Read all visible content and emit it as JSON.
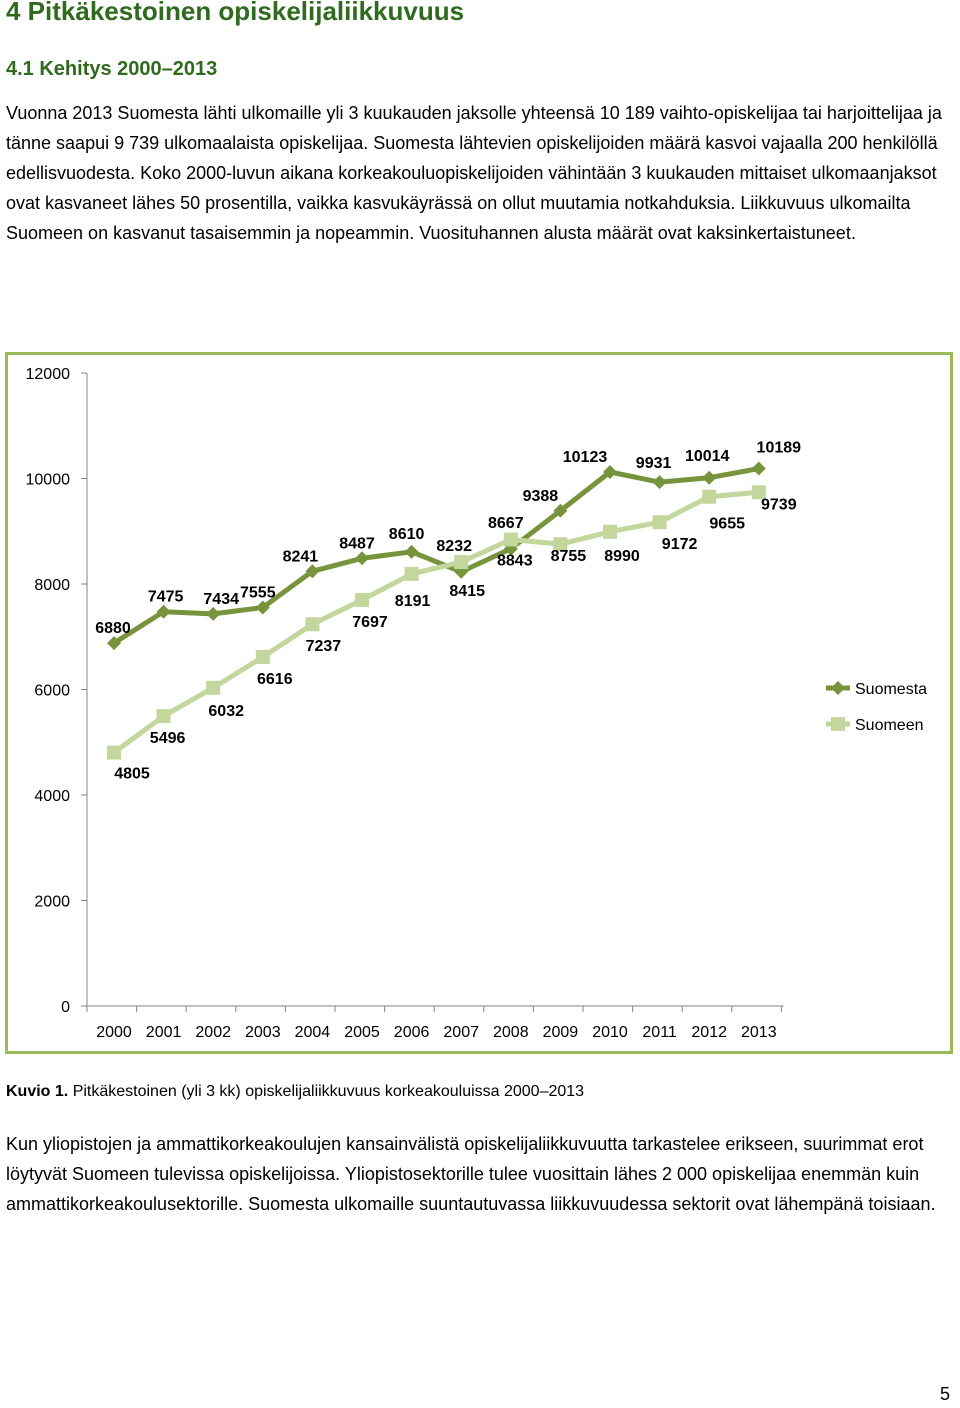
{
  "heading": "4 Pitkäkestoinen opiskelijaliikkuvuus",
  "subheading": "4.1 Kehitys 2000–2013",
  "paragraph1": "Vuonna 2013 Suomesta lähti ulkomaille yli 3 kuukauden jaksolle yhteensä 10 189 vaihto-opiskelijaa tai harjoittelijaa ja tänne saapui 9 739 ulkomaalaista opiskelijaa. Suomesta lähtevien opiskelijoiden määrä kasvoi vajaalla 200 henkilöllä edellisvuodesta. Koko 2000-luvun aikana korkeakouluopiskelijoiden vähintään 3 kuukauden mittaiset ulkomaanjaksot ovat kasvaneet lähes 50 prosentilla, vaikka kasvukäyrässä on ollut muutamia notkahduksia. Liikkuvuus ulkomailta Suomeen on kasvanut tasaisemmin ja nopeammin. Vuosituhannen alusta määrät ovat kaksinkertaistuneet.",
  "caption_label": "Kuvio 1.",
  "caption_text": "Pitkäkestoinen (yli 3 kk) opiskelijaliikkuvuus korkeakouluissa 2000–2013",
  "paragraph2": "Kun yliopistojen ja ammattikorkeakoulujen kansainvälistä opiskelijaliikkuvuutta tarkastelee erikseen, suurimmat erot löytyvät Suomeen tulevissa opiskelijoissa. Yliopistosektorille tulee vuosittain lähes 2 000 opiskelijaa enemmän kuin ammattikorkeakoulusektorille. Suomesta ulkomaille suuntautuvassa liikkuvuudessa sektorit ovat lähempänä toisiaan.",
  "page_number": "5",
  "chart_data": {
    "type": "line",
    "categories": [
      "2000",
      "2001",
      "2002",
      "2003",
      "2004",
      "2005",
      "2006",
      "2007",
      "2008",
      "2009",
      "2010",
      "2011",
      "2012",
      "2013"
    ],
    "ylim": [
      0,
      12000
    ],
    "yticks": [
      "0",
      "2000",
      "4000",
      "6000",
      "8000",
      "10000",
      "12000"
    ],
    "legend_position": "right",
    "grid": false,
    "series": [
      {
        "name": "Suomesta",
        "color": "#77933c",
        "marker": "diamond",
        "values": [
          6880,
          7475,
          7434,
          7555,
          8241,
          8487,
          8610,
          8232,
          8667,
          9388,
          10123,
          9931,
          10014,
          10189
        ]
      },
      {
        "name": "Suomeen",
        "color": "#c3d69b",
        "marker": "square",
        "values": [
          4805,
          5496,
          6032,
          6616,
          7237,
          7697,
          8191,
          8415,
          8843,
          8755,
          8990,
          9172,
          9655,
          9739
        ]
      }
    ]
  }
}
